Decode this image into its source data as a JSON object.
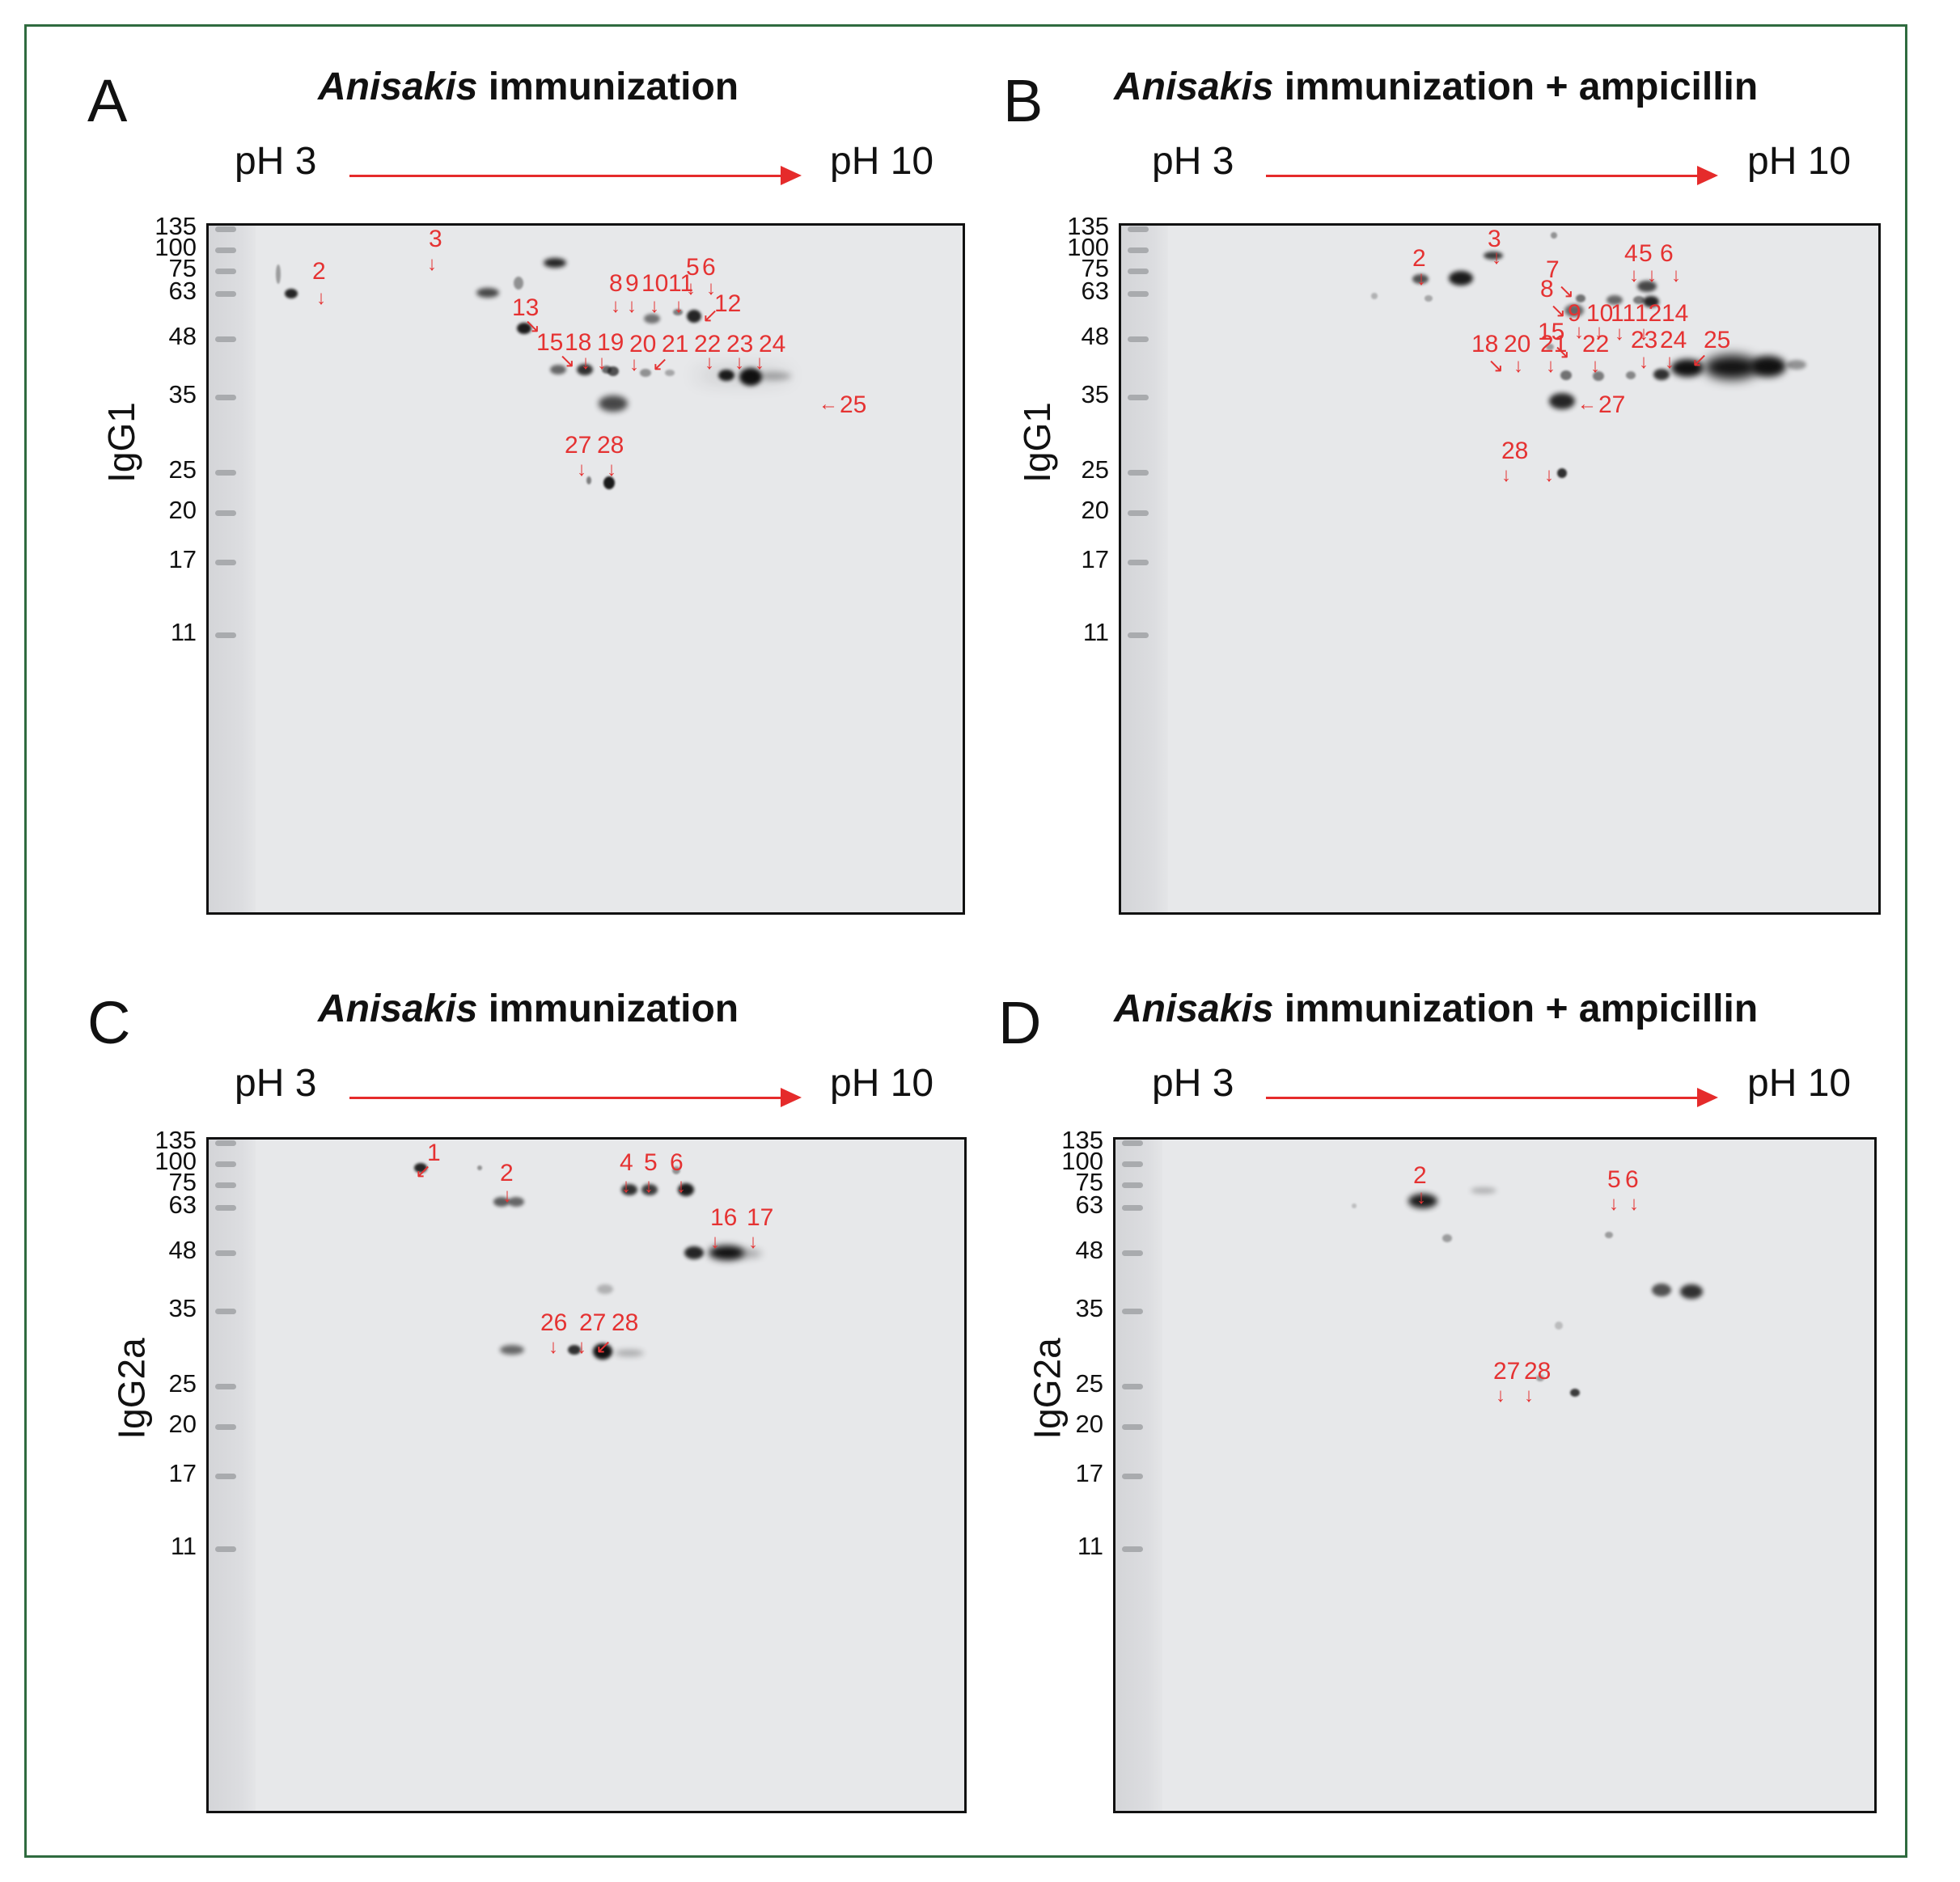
{
  "mw_markers": [
    "135",
    "100",
    "75",
    "63",
    "48",
    "35",
    "25",
    "20",
    "17",
    "11"
  ],
  "panels": [
    {
      "letter": "A",
      "title_italic": "Anisakis",
      "title_rest": " immunization",
      "ph_left": "pH 3",
      "ph_right": "pH 10",
      "ylabel": "IgG1",
      "labels": [
        "2",
        "3",
        "8",
        "9",
        "10",
        "11",
        "5",
        "6",
        "12",
        "13",
        "15",
        "18",
        "19",
        "20",
        "21",
        "22",
        "23",
        "24",
        "25",
        "27",
        "28"
      ]
    },
    {
      "letter": "B",
      "title_italic": "Anisakis",
      "title_rest": " immunization + ampicillin",
      "ph_left": "pH 3",
      "ph_right": "pH 10",
      "ylabel": "IgG1",
      "labels": [
        "2",
        "3",
        "4",
        "5",
        "6",
        "7",
        "8",
        "9",
        "10",
        "11",
        "12",
        "14",
        "15",
        "18",
        "20",
        "21",
        "22",
        "23",
        "24",
        "25",
        "27",
        "28"
      ]
    },
    {
      "letter": "C",
      "title_italic": "Anisakis",
      "title_rest": " immunization",
      "ph_left": "pH 3",
      "ph_right": "pH 10",
      "ylabel": "IgG2a",
      "labels": [
        "1",
        "2",
        "4",
        "5",
        "6",
        "16",
        "17",
        "26",
        "27",
        "28"
      ]
    },
    {
      "letter": "D",
      "title_italic": "Anisakis",
      "title_rest": " immunization + ampicillin",
      "ph_left": "pH 3",
      "ph_right": "pH 10",
      "ylabel": "IgG2a",
      "labels": [
        "2",
        "5",
        "6",
        "27",
        "28"
      ]
    }
  ],
  "colors": {
    "frame": "#2f6b3f",
    "annotation": "#e53232",
    "ph_arrow": "#e52b2b",
    "gel_bg": "#e7e8ea"
  }
}
